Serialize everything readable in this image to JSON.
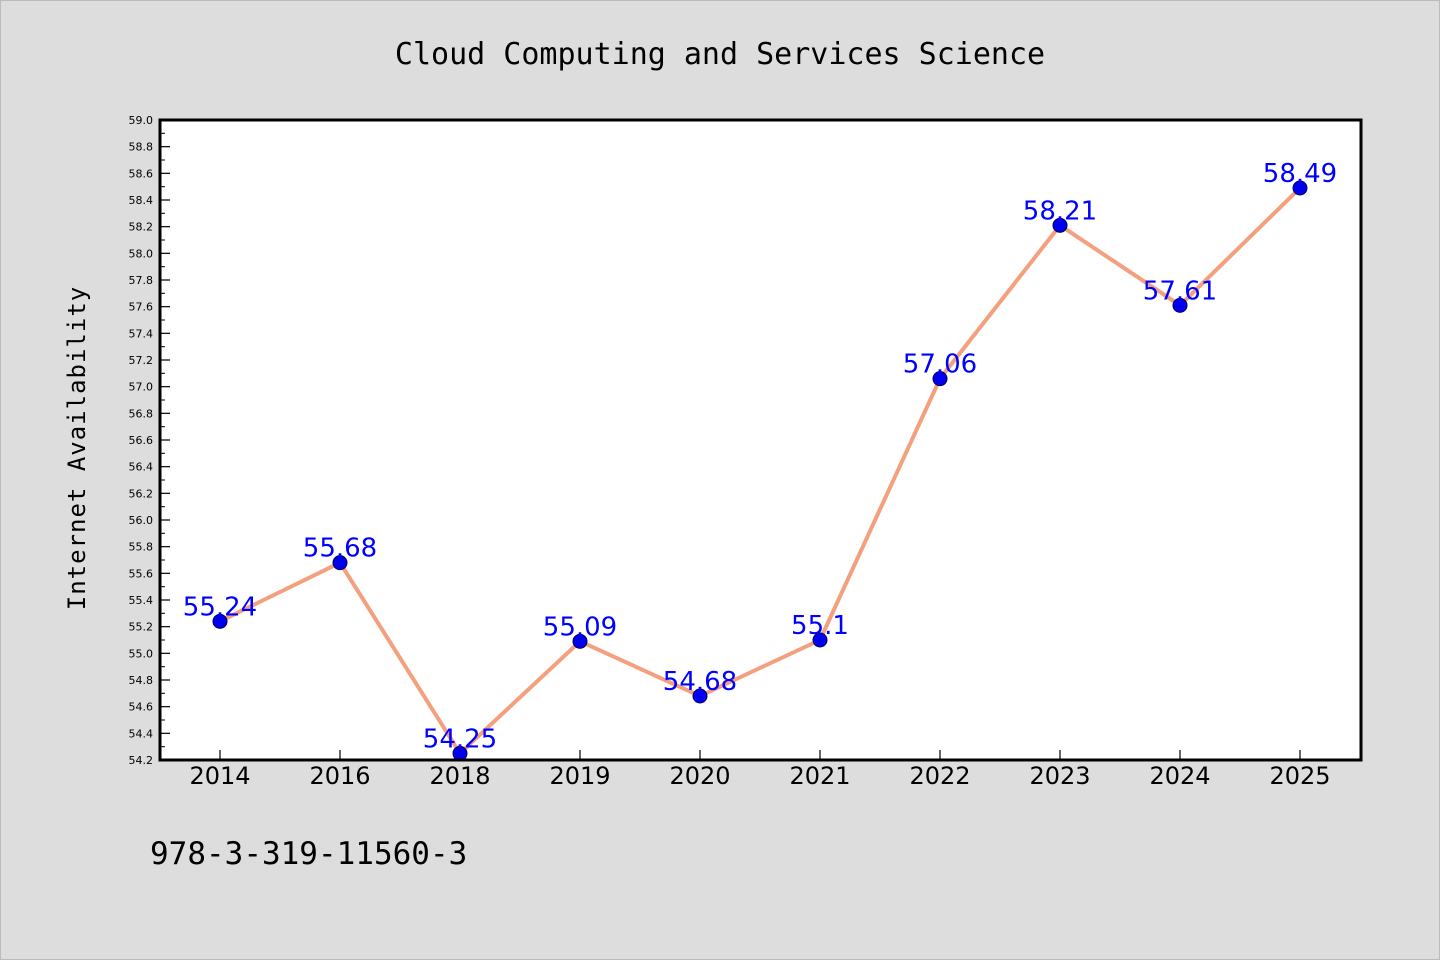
{
  "chart_data": {
    "type": "line",
    "title": "Cloud Computing and Services Science",
    "ylabel": "Internet Availability",
    "xlabel": "",
    "categories": [
      "2014",
      "2016",
      "2018",
      "2019",
      "2020",
      "2021",
      "2022",
      "2023",
      "2024",
      "2025"
    ],
    "values": [
      55.24,
      55.68,
      54.25,
      55.09,
      54.68,
      55.1,
      57.06,
      58.21,
      57.61,
      58.49
    ],
    "data_labels": [
      "55.24",
      "55.68",
      "54.25",
      "55.09",
      "54.68",
      "55.1",
      "57.06",
      "58.21",
      "57.61",
      "58.49"
    ],
    "ylim": [
      54.2,
      59.0
    ],
    "yticks": [
      "54.2",
      "54.4",
      "54.6",
      "54.8",
      "55.0",
      "55.2",
      "55.4",
      "55.6",
      "55.8",
      "56.0",
      "56.2",
      "56.4",
      "56.6",
      "56.8",
      "57.0",
      "57.2",
      "57.4",
      "57.6",
      "57.8",
      "58.0",
      "58.2",
      "58.4",
      "58.6",
      "58.8",
      "59.0"
    ],
    "grid": false,
    "legend": false,
    "colors": {
      "line": "#f4a07e",
      "marker": "#0000ee",
      "labels": "#0000ff",
      "background": "#dddddd",
      "plot_background": "#ffffff"
    }
  },
  "footer": {
    "isbn": "978-3-319-11560-3"
  }
}
